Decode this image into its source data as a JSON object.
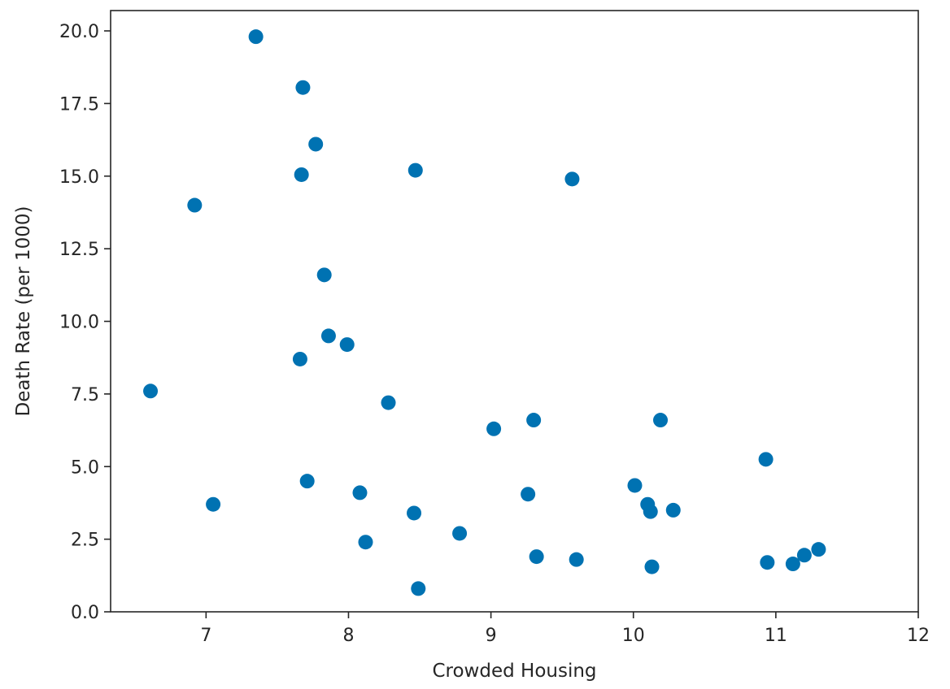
{
  "chart_data": {
    "type": "scatter",
    "title": "",
    "xlabel": "Crowded Housing",
    "ylabel": "Death Rate (per 1000)",
    "xlim": [
      6.33,
      12.0
    ],
    "ylim": [
      0.0,
      20.7
    ],
    "xticks": [
      7,
      8,
      9,
      10,
      11,
      12
    ],
    "xtick_labels": [
      "7",
      "8",
      "9",
      "10",
      "11",
      "12"
    ],
    "yticks": [
      0.0,
      2.5,
      5.0,
      7.5,
      10.0,
      12.5,
      15.0,
      17.5,
      20.0
    ],
    "ytick_labels": [
      "0.0",
      "2.5",
      "5.0",
      "7.5",
      "10.0",
      "12.5",
      "15.0",
      "17.5",
      "20.0"
    ],
    "grid": false,
    "marker_color": "#0072B2",
    "points": [
      {
        "x": 6.61,
        "y": 7.6
      },
      {
        "x": 6.92,
        "y": 14.0
      },
      {
        "x": 7.05,
        "y": 3.7
      },
      {
        "x": 7.35,
        "y": 19.8
      },
      {
        "x": 7.66,
        "y": 8.7
      },
      {
        "x": 7.67,
        "y": 15.05
      },
      {
        "x": 7.68,
        "y": 18.05
      },
      {
        "x": 7.71,
        "y": 4.5
      },
      {
        "x": 7.77,
        "y": 16.1
      },
      {
        "x": 7.83,
        "y": 11.6
      },
      {
        "x": 7.86,
        "y": 9.5
      },
      {
        "x": 7.99,
        "y": 9.2
      },
      {
        "x": 8.08,
        "y": 4.1
      },
      {
        "x": 8.12,
        "y": 2.4
      },
      {
        "x": 8.28,
        "y": 7.2
      },
      {
        "x": 8.46,
        "y": 3.4
      },
      {
        "x": 8.47,
        "y": 15.2
      },
      {
        "x": 8.49,
        "y": 0.8
      },
      {
        "x": 8.78,
        "y": 2.7
      },
      {
        "x": 9.02,
        "y": 6.3
      },
      {
        "x": 9.26,
        "y": 4.05
      },
      {
        "x": 9.3,
        "y": 6.6
      },
      {
        "x": 9.32,
        "y": 1.9
      },
      {
        "x": 9.57,
        "y": 14.9
      },
      {
        "x": 9.6,
        "y": 1.8
      },
      {
        "x": 10.01,
        "y": 4.35
      },
      {
        "x": 10.1,
        "y": 3.7
      },
      {
        "x": 10.12,
        "y": 3.45
      },
      {
        "x": 10.13,
        "y": 1.55
      },
      {
        "x": 10.19,
        "y": 6.6
      },
      {
        "x": 10.28,
        "y": 3.5
      },
      {
        "x": 10.93,
        "y": 5.25
      },
      {
        "x": 10.94,
        "y": 1.7
      },
      {
        "x": 11.12,
        "y": 1.65
      },
      {
        "x": 11.2,
        "y": 1.95
      },
      {
        "x": 11.3,
        "y": 2.15
      }
    ]
  }
}
